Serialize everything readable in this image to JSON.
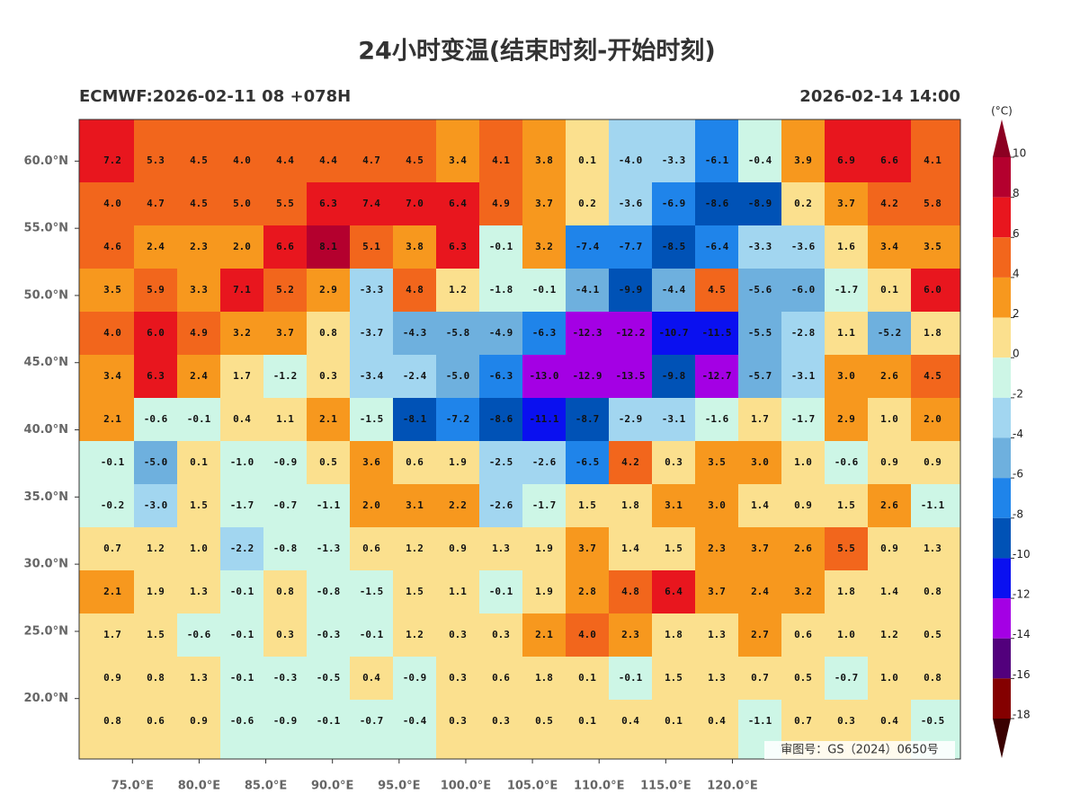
{
  "header": {
    "title": "24小时变温(结束时刻-开始时刻)",
    "left": "ECMWF:2026-02-11 08 +078H",
    "right": "2026-02-14 14:00"
  },
  "map": {
    "xlim": [
      71,
      137.1
    ],
    "ylim": [
      15.5,
      63.1
    ],
    "xticks": [
      {
        "value": 75,
        "label": "75.0°E"
      },
      {
        "value": 80,
        "label": "80.0°E"
      },
      {
        "value": 85,
        "label": "85.0°E"
      },
      {
        "value": 90,
        "label": "90.0°E"
      },
      {
        "value": 95,
        "label": "95.0°E"
      },
      {
        "value": 100,
        "label": "100.0°E"
      },
      {
        "value": 105,
        "label": "105.0°E"
      },
      {
        "value": 110,
        "label": "110.0°E"
      },
      {
        "value": 115,
        "label": "115.0°E"
      },
      {
        "value": 120,
        "label": "120.0°E"
      }
    ],
    "yticks": [
      {
        "value": 60,
        "label": "60.0°N"
      },
      {
        "value": 55,
        "label": "55.0°N"
      },
      {
        "value": 50,
        "label": "50.0°N"
      },
      {
        "value": 45,
        "label": "45.0°N"
      },
      {
        "value": 40,
        "label": "40.0°N"
      },
      {
        "value": 35,
        "label": "35.0°N"
      },
      {
        "value": 30,
        "label": "30.0°N"
      },
      {
        "value": 25,
        "label": "25.0°N"
      },
      {
        "value": 20,
        "label": "20.0°N"
      }
    ],
    "note": "审图号：GS（2024）0650号"
  },
  "grid": {
    "rows": [
      [
        "7.2",
        "5.3",
        "4.5",
        "4.0",
        "4.4",
        "4.4",
        "4.7",
        "4.5",
        "3.4",
        "4.1",
        "3.8",
        "0.1",
        "-4.0",
        "-3.3",
        "-6.1",
        "-0.4",
        "3.9",
        "6.9",
        "6.6",
        "4.1"
      ],
      [
        "4.0",
        "4.7",
        "4.5",
        "5.0",
        "5.5",
        "6.3",
        "7.4",
        "7.0",
        "6.4",
        "4.9",
        "3.7",
        "0.2",
        "-3.6",
        "-6.9",
        "-8.6",
        "-8.9",
        "0.2",
        "3.7",
        "4.2",
        "5.8"
      ],
      [
        "4.6",
        "2.4",
        "2.3",
        "2.0",
        "6.6",
        "8.1",
        "5.1",
        "3.8",
        "6.3",
        "-0.1",
        "3.2",
        "-7.4",
        "-7.7",
        "-8.5",
        "-6.4",
        "-3.3",
        "-3.6",
        "1.6",
        "3.4",
        "3.5"
      ],
      [
        "3.5",
        "5.9",
        "3.3",
        "7.1",
        "5.2",
        "2.9",
        "-3.3",
        "4.8",
        "1.2",
        "-1.8",
        "-0.1",
        "-4.1",
        "-9.9",
        "-4.4",
        "4.5",
        "-5.6",
        "-6.0",
        "-1.7",
        "0.1",
        "6.0"
      ],
      [
        "4.0",
        "6.0",
        "4.9",
        "3.2",
        "3.7",
        "0.8",
        "-3.7",
        "-4.3",
        "-5.8",
        "-4.9",
        "-6.3",
        "-12.3",
        "-12.2",
        "-10.7",
        "-11.5",
        "-5.5",
        "-2.8",
        "1.1",
        "-5.2",
        "1.8"
      ],
      [
        "3.4",
        "6.3",
        "2.4",
        "1.7",
        "-1.2",
        "0.3",
        "-3.4",
        "-2.4",
        "-5.0",
        "-6.3",
        "-13.0",
        "-12.9",
        "-13.5",
        "-9.8",
        "-12.7",
        "-5.7",
        "-3.1",
        "3.0",
        "2.6",
        "4.5"
      ],
      [
        "2.1",
        "-0.6",
        "-0.1",
        "0.4",
        "1.1",
        "2.1",
        "-1.5",
        "-8.1",
        "-7.2",
        "-8.6",
        "-11.1",
        "-8.7",
        "-2.9",
        "-3.1",
        "-1.6",
        "1.7",
        "-1.7",
        "2.9",
        "1.0",
        "2.0"
      ],
      [
        "-0.1",
        "-5.0",
        "0.1",
        "-1.0",
        "-0.9",
        "0.5",
        "3.6",
        "0.6",
        "1.9",
        "-2.5",
        "-2.6",
        "-6.5",
        "4.2",
        "0.3",
        "3.5",
        "3.0",
        "1.0",
        "-0.6",
        "0.9",
        "0.9"
      ],
      [
        "-0.2",
        "-3.0",
        "1.5",
        "-1.7",
        "-0.7",
        "-1.1",
        "2.0",
        "3.1",
        "2.2",
        "-2.6",
        "-1.7",
        "1.5",
        "1.8",
        "3.1",
        "3.0",
        "1.4",
        "0.9",
        "1.5",
        "2.6",
        "-1.1"
      ],
      [
        "0.7",
        "1.2",
        "1.0",
        "-2.2",
        "-0.8",
        "-1.3",
        "0.6",
        "1.2",
        "0.9",
        "1.3",
        "1.9",
        "3.7",
        "1.4",
        "1.5",
        "2.3",
        "3.7",
        "2.6",
        "5.5",
        "0.9",
        "1.3"
      ],
      [
        "2.1",
        "1.9",
        "1.3",
        "-0.1",
        "0.8",
        "-0.8",
        "-1.5",
        "1.5",
        "1.1",
        "-0.1",
        "1.9",
        "2.8",
        "4.8",
        "6.4",
        "3.7",
        "2.4",
        "3.2",
        "1.8",
        "1.4",
        "0.8"
      ],
      [
        "1.7",
        "1.5",
        "-0.6",
        "-0.1",
        "0.3",
        "-0.3",
        "-0.1",
        "1.2",
        "0.3",
        "0.3",
        "2.1",
        "4.0",
        "2.3",
        "1.8",
        "1.3",
        "2.7",
        "0.6",
        "1.0",
        "1.2",
        "0.5"
      ],
      [
        "0.9",
        "0.8",
        "1.3",
        "-0.1",
        "-0.3",
        "-0.5",
        "0.4",
        "-0.9",
        "0.3",
        "0.6",
        "1.8",
        "0.1",
        "-0.1",
        "1.5",
        "1.3",
        "0.7",
        "0.5",
        "-0.7",
        "1.0",
        "0.8"
      ],
      [
        "0.8",
        "0.6",
        "0.9",
        "-0.6",
        "-0.9",
        "-0.1",
        "-0.7",
        "-0.4",
        "0.3",
        "0.3",
        "0.5",
        "0.1",
        "0.4",
        "0.1",
        "0.4",
        "-1.1",
        "0.7",
        "0.3",
        "0.4",
        "-0.5"
      ]
    ]
  },
  "colorbar": {
    "unit": "(°C)",
    "ticks": [
      10,
      8,
      6,
      4,
      2,
      0,
      -2,
      -4,
      -6,
      -8,
      -10,
      -12,
      -14,
      -16,
      -18
    ],
    "top_color": "#8c0022",
    "bottom_color": "#3a0000",
    "colors": [
      "#b4002e",
      "#e8161e",
      "#f2661c",
      "#f7981e",
      "#fbe08e",
      "#cdf6e6",
      "#a2d6f0",
      "#6eb0de",
      "#1f84ea",
      "#0052b6",
      "#0a10f0",
      "#a400e4",
      "#52007c",
      "#840000"
    ]
  }
}
